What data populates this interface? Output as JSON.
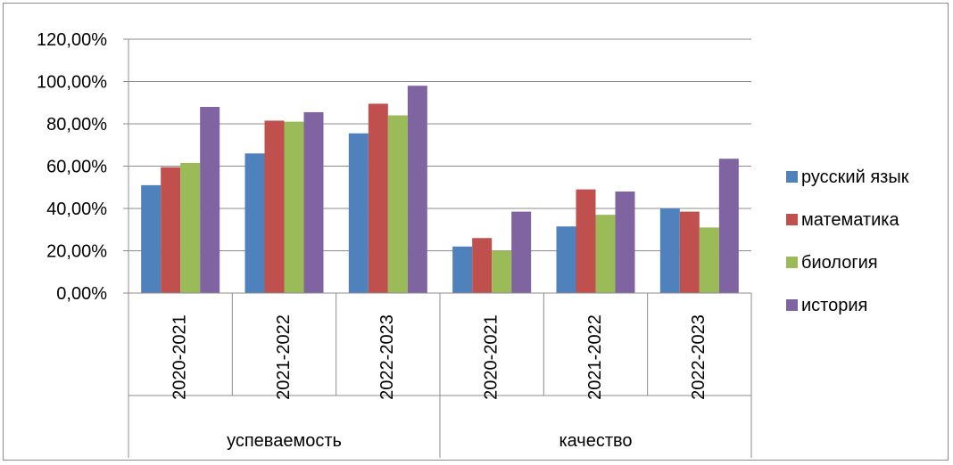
{
  "chart_data": {
    "type": "bar",
    "groups": [
      {
        "label": "успеваемость",
        "categories": [
          "2020-2021",
          "2021-2022",
          "2022-2023"
        ]
      },
      {
        "label": "качество",
        "categories": [
          "2020-2021",
          "2021-2022",
          "2022-2023"
        ]
      }
    ],
    "series": [
      {
        "name": "русский язык",
        "color": "#4F81BD",
        "values": [
          51,
          66,
          75.5,
          22,
          31.5,
          40
        ]
      },
      {
        "name": "математика",
        "color": "#C0504D",
        "values": [
          59.5,
          81.5,
          89.5,
          26,
          49,
          38.5
        ]
      },
      {
        "name": "биология",
        "color": "#9BBB59",
        "values": [
          61.5,
          81,
          84,
          20,
          37,
          31
        ]
      },
      {
        "name": "история",
        "color": "#8064A2",
        "values": [
          88,
          85.5,
          98,
          38.5,
          48,
          63.5
        ]
      }
    ],
    "ylim": [
      0,
      120
    ],
    "yticks": [
      "0,00%",
      "20,00%",
      "40,00%",
      "60,00%",
      "80,00%",
      "100,00%",
      "120,00%"
    ],
    "grid": true,
    "legend_position": "right"
  }
}
